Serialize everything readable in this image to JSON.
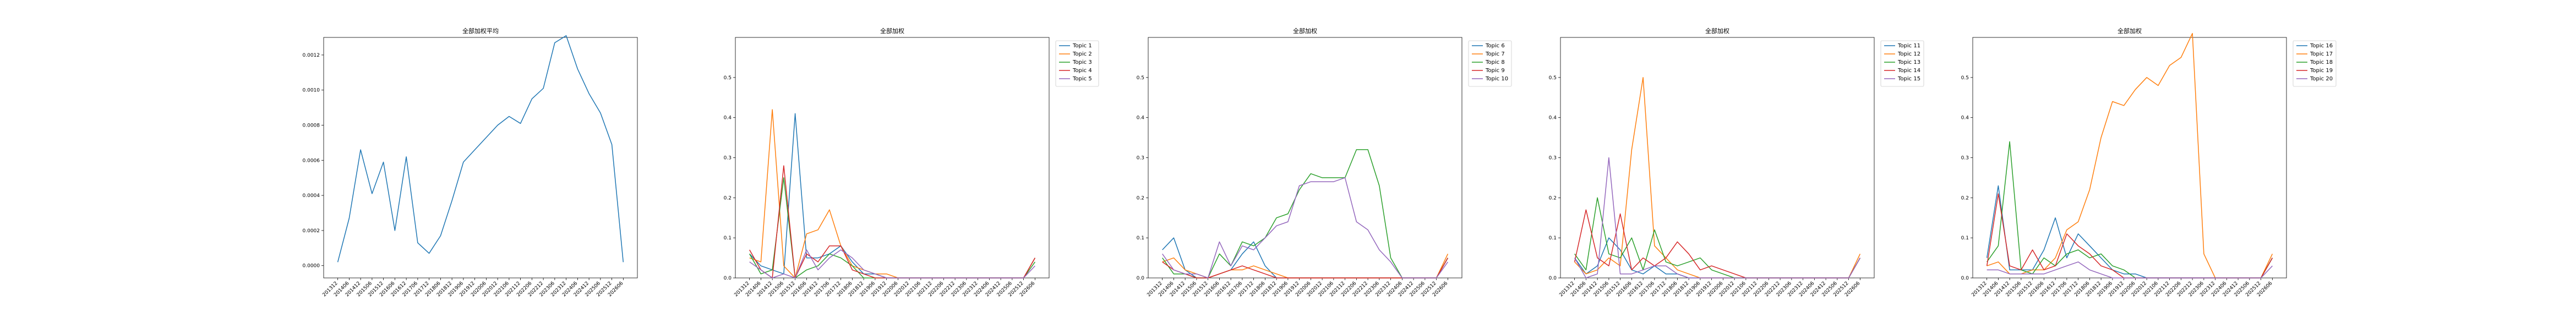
{
  "colors": [
    "#1f77b4",
    "#ff7f0e",
    "#2ca02c",
    "#d62728",
    "#9467bd"
  ],
  "chart_data": [
    {
      "type": "line",
      "title": "全部加权平均",
      "categories": [
        "201312",
        "201406",
        "201412",
        "201506",
        "201512",
        "201606",
        "201612",
        "201706",
        "201712",
        "201806",
        "201812",
        "201906",
        "201912",
        "202006",
        "202012",
        "202106",
        "202112",
        "202206",
        "202212",
        "202306",
        "202312",
        "202406",
        "202412",
        "202506",
        "202512",
        "202606"
      ],
      "ylim": [
        -7e-05,
        0.0013
      ],
      "yticks": [
        0.0,
        0.0002,
        0.0004,
        0.0006,
        0.0008,
        0.001,
        0.0012
      ],
      "ytick_labels": [
        "0.0000",
        "0.0002",
        "0.0004",
        "0.0006",
        "0.0008",
        "0.0010",
        "0.0012"
      ],
      "series": [
        {
          "name": "",
          "values": [
            2e-05,
            0.00027,
            0.00066,
            0.00041,
            0.00059,
            0.0002,
            0.00062,
            0.00013,
            7e-05,
            0.00017,
            0.00037,
            0.00059,
            0.00066,
            0.00073,
            0.0008,
            0.00085,
            0.00081,
            0.00095,
            0.00101,
            0.00127,
            0.00131,
            0.00112,
            0.00098,
            0.00087,
            0.00069,
            2e-05
          ]
        }
      ]
    },
    {
      "type": "line",
      "title": "全部加权",
      "categories": [
        "201312",
        "201406",
        "201412",
        "201506",
        "201512",
        "201606",
        "201612",
        "201706",
        "201712",
        "201806",
        "201812",
        "201906",
        "201912",
        "202006",
        "202012",
        "202106",
        "202112",
        "202206",
        "202212",
        "202306",
        "202312",
        "202406",
        "202412",
        "202506",
        "202512",
        "202606"
      ],
      "ylim": [
        0.0,
        0.6
      ],
      "yticks": [
        0.0,
        0.1,
        0.2,
        0.3,
        0.4,
        0.5
      ],
      "ytick_labels": [
        "0.0",
        "0.1",
        "0.2",
        "0.3",
        "0.4",
        "0.5"
      ],
      "legend": "top-right",
      "series": [
        {
          "name": "Topic 1",
          "values": [
            0.06,
            0.03,
            0.02,
            0.01,
            0.41,
            0.05,
            0.05,
            0.06,
            0.08,
            0.04,
            0.01,
            0.01,
            0.0,
            0.0,
            0.0,
            0.0,
            0.0,
            0.0,
            0.0,
            0.0,
            0.0,
            0.0,
            0.0,
            0.0,
            0.0,
            0.05
          ]
        },
        {
          "name": "Topic 2",
          "values": [
            0.05,
            0.04,
            0.42,
            0.03,
            0.0,
            0.11,
            0.12,
            0.17,
            0.08,
            0.03,
            0.02,
            0.01,
            0.01,
            0.0,
            0.0,
            0.0,
            0.0,
            0.0,
            0.0,
            0.0,
            0.0,
            0.0,
            0.0,
            0.0,
            0.0,
            0.05
          ]
        },
        {
          "name": "Topic 3",
          "values": [
            0.06,
            0.01,
            0.02,
            0.25,
            0.0,
            0.02,
            0.03,
            0.06,
            0.05,
            0.03,
            0.0,
            0.0,
            0.0,
            0.0,
            0.0,
            0.0,
            0.0,
            0.0,
            0.0,
            0.0,
            0.0,
            0.0,
            0.0,
            0.0,
            0.0,
            0.04
          ]
        },
        {
          "name": "Topic 4",
          "values": [
            0.07,
            0.02,
            0.0,
            0.28,
            0.0,
            0.06,
            0.04,
            0.08,
            0.08,
            0.02,
            0.01,
            0.0,
            0.0,
            0.0,
            0.0,
            0.0,
            0.0,
            0.0,
            0.0,
            0.0,
            0.0,
            0.0,
            0.0,
            0.0,
            0.0,
            0.05
          ]
        },
        {
          "name": "Topic 5",
          "values": [
            0.04,
            0.02,
            0.0,
            0.01,
            0.0,
            0.07,
            0.02,
            0.05,
            0.07,
            0.05,
            0.02,
            0.01,
            0.0,
            0.0,
            0.0,
            0.0,
            0.0,
            0.0,
            0.0,
            0.0,
            0.0,
            0.0,
            0.0,
            0.0,
            0.0,
            0.03
          ]
        }
      ]
    },
    {
      "type": "line",
      "title": "全部加权",
      "categories": [
        "201312",
        "201406",
        "201412",
        "201506",
        "201512",
        "201606",
        "201612",
        "201706",
        "201712",
        "201806",
        "201812",
        "201906",
        "201912",
        "202006",
        "202012",
        "202106",
        "202112",
        "202206",
        "202212",
        "202306",
        "202312",
        "202406",
        "202412",
        "202506",
        "202512",
        "202606"
      ],
      "ylim": [
        0.0,
        0.6
      ],
      "yticks": [
        0.0,
        0.1,
        0.2,
        0.3,
        0.4,
        0.5
      ],
      "ytick_labels": [
        "0.0",
        "0.1",
        "0.2",
        "0.3",
        "0.4",
        "0.5"
      ],
      "legend": "top-right",
      "series": [
        {
          "name": "Topic 6",
          "values": [
            0.07,
            0.1,
            0.02,
            0.0,
            0.0,
            0.01,
            0.02,
            0.06,
            0.09,
            0.03,
            0.0,
            0.0,
            0.0,
            0.0,
            0.0,
            0.0,
            0.0,
            0.0,
            0.0,
            0.0,
            0.0,
            0.0,
            0.0,
            0.0,
            0.0,
            0.05
          ]
        },
        {
          "name": "Topic 7",
          "values": [
            0.04,
            0.05,
            0.02,
            0.01,
            0.0,
            0.01,
            0.02,
            0.02,
            0.03,
            0.02,
            0.01,
            0.0,
            0.0,
            0.0,
            0.0,
            0.0,
            0.0,
            0.0,
            0.0,
            0.0,
            0.0,
            0.0,
            0.0,
            0.0,
            0.0,
            0.06
          ]
        },
        {
          "name": "Topic 8",
          "values": [
            0.05,
            0.01,
            0.01,
            0.0,
            0.0,
            0.06,
            0.03,
            0.09,
            0.08,
            0.1,
            0.15,
            0.16,
            0.22,
            0.26,
            0.25,
            0.25,
            0.25,
            0.32,
            0.32,
            0.23,
            0.05,
            0.0,
            0.0,
            0.0,
            0.0,
            0.05
          ]
        },
        {
          "name": "Topic 9",
          "values": [
            0.04,
            0.02,
            0.01,
            0.0,
            0.0,
            0.01,
            0.02,
            0.03,
            0.02,
            0.01,
            0.0,
            0.0,
            0.0,
            0.0,
            0.0,
            0.0,
            0.0,
            0.0,
            0.0,
            0.0,
            0.0,
            0.0,
            0.0,
            0.0,
            0.0,
            0.05
          ]
        },
        {
          "name": "Topic 10",
          "values": [
            0.06,
            0.02,
            0.01,
            0.01,
            0.0,
            0.09,
            0.03,
            0.08,
            0.07,
            0.1,
            0.13,
            0.14,
            0.23,
            0.24,
            0.24,
            0.24,
            0.25,
            0.14,
            0.12,
            0.07,
            0.04,
            0.0,
            0.0,
            0.0,
            0.0,
            0.04
          ]
        }
      ]
    },
    {
      "type": "line",
      "title": "全部加权",
      "categories": [
        "201312",
        "201406",
        "201412",
        "201506",
        "201512",
        "201606",
        "201612",
        "201706",
        "201712",
        "201806",
        "201812",
        "201906",
        "201912",
        "202006",
        "202012",
        "202106",
        "202112",
        "202206",
        "202212",
        "202306",
        "202312",
        "202406",
        "202412",
        "202506",
        "202512",
        "202606"
      ],
      "ylim": [
        0.0,
        0.6
      ],
      "yticks": [
        0.0,
        0.1,
        0.2,
        0.3,
        0.4,
        0.5
      ],
      "ytick_labels": [
        "0.0",
        "0.1",
        "0.2",
        "0.3",
        "0.4",
        "0.5"
      ],
      "legend": "top-right",
      "series": [
        {
          "name": "Topic 11",
          "values": [
            0.05,
            0.01,
            0.03,
            0.1,
            0.07,
            0.02,
            0.01,
            0.03,
            0.01,
            0.01,
            0.0,
            0.0,
            0.0,
            0.0,
            0.0,
            0.0,
            0.0,
            0.0,
            0.0,
            0.0,
            0.0,
            0.0,
            0.0,
            0.0,
            0.0,
            0.05
          ]
        },
        {
          "name": "Topic 12",
          "values": [
            0.04,
            0.01,
            0.02,
            0.05,
            0.03,
            0.32,
            0.5,
            0.08,
            0.05,
            0.02,
            0.01,
            0.0,
            0.0,
            0.0,
            0.0,
            0.0,
            0.0,
            0.0,
            0.0,
            0.0,
            0.0,
            0.0,
            0.0,
            0.0,
            0.0,
            0.06
          ]
        },
        {
          "name": "Topic 13",
          "values": [
            0.06,
            0.02,
            0.2,
            0.06,
            0.05,
            0.1,
            0.02,
            0.12,
            0.04,
            0.03,
            0.04,
            0.05,
            0.02,
            0.01,
            0.0,
            0.0,
            0.0,
            0.0,
            0.0,
            0.0,
            0.0,
            0.0,
            0.0,
            0.0,
            0.0,
            0.05
          ]
        },
        {
          "name": "Topic 14",
          "values": [
            0.04,
            0.17,
            0.05,
            0.03,
            0.16,
            0.02,
            0.05,
            0.03,
            0.05,
            0.09,
            0.06,
            0.02,
            0.03,
            0.02,
            0.01,
            0.0,
            0.0,
            0.0,
            0.0,
            0.0,
            0.0,
            0.0,
            0.0,
            0.0,
            0.0,
            0.05
          ]
        },
        {
          "name": "Topic 15",
          "values": [
            0.05,
            0.0,
            0.01,
            0.3,
            0.01,
            0.01,
            0.02,
            0.03,
            0.03,
            0.01,
            0.0,
            0.0,
            0.0,
            0.0,
            0.0,
            0.0,
            0.0,
            0.0,
            0.0,
            0.0,
            0.0,
            0.0,
            0.0,
            0.0,
            0.0,
            0.05
          ]
        }
      ]
    },
    {
      "type": "line",
      "title": "全部加权",
      "categories": [
        "201312",
        "201406",
        "201412",
        "201506",
        "201512",
        "201606",
        "201612",
        "201706",
        "201712",
        "201806",
        "201812",
        "201906",
        "201912",
        "202006",
        "202012",
        "202106",
        "202112",
        "202206",
        "202212",
        "202306",
        "202312",
        "202406",
        "202412",
        "202506",
        "202512",
        "202606"
      ],
      "ylim": [
        0.0,
        0.6
      ],
      "yticks": [
        0.0,
        0.1,
        0.2,
        0.3,
        0.4,
        0.5
      ],
      "ytick_labels": [
        "0.0",
        "0.1",
        "0.2",
        "0.3",
        "0.4",
        "0.5"
      ],
      "legend": "top-right",
      "series": [
        {
          "name": "Topic 16",
          "values": [
            0.05,
            0.23,
            0.02,
            0.02,
            0.02,
            0.07,
            0.15,
            0.05,
            0.11,
            0.08,
            0.05,
            0.02,
            0.01,
            0.01,
            0.0,
            0.0,
            0.0,
            0.0,
            0.0,
            0.0,
            0.0,
            0.0,
            0.0,
            0.0,
            0.0,
            0.05
          ]
        },
        {
          "name": "Topic 17",
          "values": [
            0.03,
            0.04,
            0.01,
            0.01,
            0.02,
            0.02,
            0.05,
            0.12,
            0.14,
            0.22,
            0.35,
            0.44,
            0.43,
            0.47,
            0.5,
            0.48,
            0.53,
            0.55,
            0.61,
            0.06,
            0.0,
            0.0,
            0.0,
            0.0,
            0.0,
            0.06
          ]
        },
        {
          "name": "Topic 18",
          "values": [
            0.04,
            0.08,
            0.34,
            0.02,
            0.01,
            0.05,
            0.03,
            0.06,
            0.07,
            0.05,
            0.06,
            0.03,
            0.02,
            0.0,
            0.0,
            0.0,
            0.0,
            0.0,
            0.0,
            0.0,
            0.0,
            0.0,
            0.0,
            0.0,
            0.0,
            0.05
          ]
        },
        {
          "name": "Topic 19",
          "values": [
            0.03,
            0.21,
            0.03,
            0.02,
            0.07,
            0.02,
            0.03,
            0.11,
            0.08,
            0.06,
            0.03,
            0.02,
            0.0,
            0.0,
            0.0,
            0.0,
            0.0,
            0.0,
            0.0,
            0.0,
            0.0,
            0.0,
            0.0,
            0.0,
            0.0,
            0.05
          ]
        },
        {
          "name": "Topic 20",
          "values": [
            0.02,
            0.02,
            0.01,
            0.01,
            0.01,
            0.01,
            0.02,
            0.03,
            0.04,
            0.02,
            0.01,
            0.0,
            0.0,
            0.0,
            0.0,
            0.0,
            0.0,
            0.0,
            0.0,
            0.0,
            0.0,
            0.0,
            0.0,
            0.0,
            0.0,
            0.03
          ]
        }
      ]
    }
  ]
}
